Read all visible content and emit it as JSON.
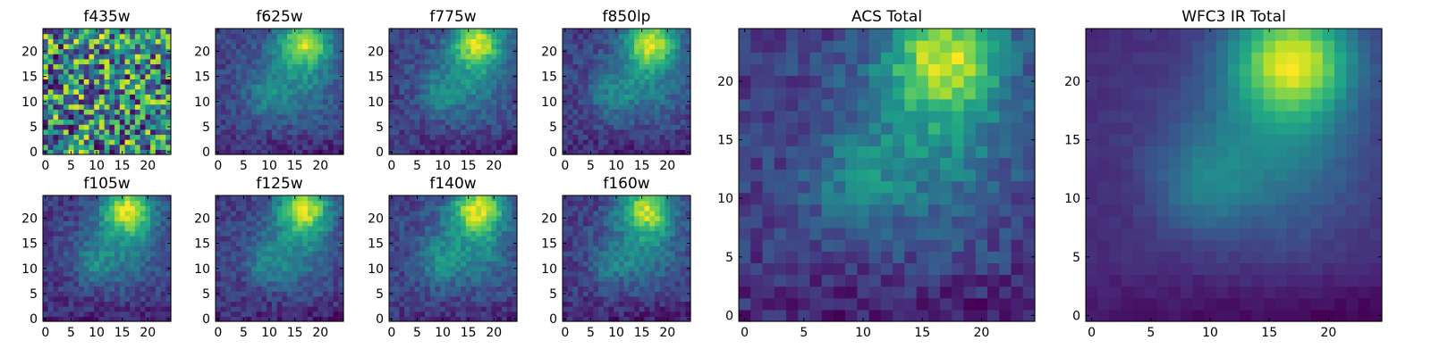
{
  "figure": {
    "description_free": true
  },
  "chart_data": [
    {
      "id": "f435w",
      "type": "heatmap",
      "title": "f435w",
      "grid": "25x25",
      "xlim": [
        0,
        24
      ],
      "ylim": [
        0,
        24
      ],
      "xticks": [
        "0",
        "5",
        "10",
        "15",
        "20"
      ],
      "yticks": [
        "0",
        "5",
        "10",
        "15",
        "20"
      ],
      "colormap": "viridis",
      "pattern": "noise",
      "peak": [
        16,
        22
      ]
    },
    {
      "id": "f625w",
      "type": "heatmap",
      "title": "f625w",
      "grid": "25x25",
      "xlim": [
        0,
        24
      ],
      "ylim": [
        0,
        24
      ],
      "xticks": [
        "0",
        "5",
        "10",
        "15",
        "20"
      ],
      "yticks": [
        "0",
        "5",
        "10",
        "15",
        "20"
      ],
      "colormap": "viridis",
      "pattern": "blob",
      "peak": [
        17,
        22
      ]
    },
    {
      "id": "f775w",
      "type": "heatmap",
      "title": "f775w",
      "grid": "25x25",
      "xlim": [
        0,
        24
      ],
      "ylim": [
        0,
        24
      ],
      "xticks": [
        "0",
        "5",
        "10",
        "15",
        "20"
      ],
      "yticks": [
        "0",
        "5",
        "10",
        "15",
        "20"
      ],
      "colormap": "viridis",
      "pattern": "blob",
      "peak": [
        17,
        22
      ]
    },
    {
      "id": "f850lp",
      "type": "heatmap",
      "title": "f850lp",
      "grid": "25x25",
      "xlim": [
        0,
        24
      ],
      "ylim": [
        0,
        24
      ],
      "xticks": [
        "0",
        "5",
        "10",
        "15",
        "20"
      ],
      "yticks": [
        "0",
        "5",
        "10",
        "15",
        "20"
      ],
      "colormap": "viridis",
      "pattern": "blob",
      "peak": [
        17,
        22
      ]
    },
    {
      "id": "f105w",
      "type": "heatmap",
      "title": "f105w",
      "grid": "25x25",
      "xlim": [
        0,
        24
      ],
      "ylim": [
        0,
        24
      ],
      "xticks": [
        "0",
        "5",
        "10",
        "15",
        "20"
      ],
      "yticks": [
        "0",
        "5",
        "10",
        "15",
        "20"
      ],
      "colormap": "viridis",
      "pattern": "blob",
      "peak": [
        16,
        22
      ]
    },
    {
      "id": "f125w",
      "type": "heatmap",
      "title": "f125w",
      "grid": "25x25",
      "xlim": [
        0,
        24
      ],
      "ylim": [
        0,
        24
      ],
      "xticks": [
        "0",
        "5",
        "10",
        "15",
        "20"
      ],
      "yticks": [
        "0",
        "5",
        "10",
        "15",
        "20"
      ],
      "colormap": "viridis",
      "pattern": "blob",
      "peak": [
        17,
        22
      ]
    },
    {
      "id": "f140w",
      "type": "heatmap",
      "title": "f140w",
      "grid": "25x25",
      "xlim": [
        0,
        24
      ],
      "ylim": [
        0,
        24
      ],
      "xticks": [
        "0",
        "5",
        "10",
        "15",
        "20"
      ],
      "yticks": [
        "0",
        "5",
        "10",
        "15",
        "20"
      ],
      "colormap": "viridis",
      "pattern": "blob",
      "peak": [
        17,
        22
      ]
    },
    {
      "id": "f160w",
      "type": "heatmap",
      "title": "f160w",
      "grid": "25x25",
      "xlim": [
        0,
        24
      ],
      "ylim": [
        0,
        24
      ],
      "xticks": [
        "0",
        "5",
        "10",
        "15",
        "20"
      ],
      "yticks": [
        "0",
        "5",
        "10",
        "15",
        "20"
      ],
      "colormap": "viridis",
      "pattern": "blob",
      "peak": [
        16,
        22
      ]
    },
    {
      "id": "acs-total",
      "type": "heatmap",
      "title": "ACS Total",
      "grid": "25x25",
      "xlim": [
        0,
        24
      ],
      "ylim": [
        0,
        24
      ],
      "xticks": [
        "0",
        "5",
        "10",
        "15",
        "20"
      ],
      "yticks": [
        "0",
        "5",
        "10",
        "15",
        "20"
      ],
      "colormap": "viridis",
      "pattern": "blob",
      "peak": [
        17,
        22
      ]
    },
    {
      "id": "wfc3-ir-total",
      "type": "heatmap",
      "title": "WFC3 IR Total",
      "grid": "25x25",
      "xlim": [
        0,
        24
      ],
      "ylim": [
        0,
        24
      ],
      "xticks": [
        "0",
        "5",
        "10",
        "15",
        "20"
      ],
      "yticks": [
        "0",
        "5",
        "10",
        "15",
        "20"
      ],
      "colormap": "viridis",
      "pattern": "smooth",
      "peak": [
        17,
        22
      ]
    }
  ]
}
